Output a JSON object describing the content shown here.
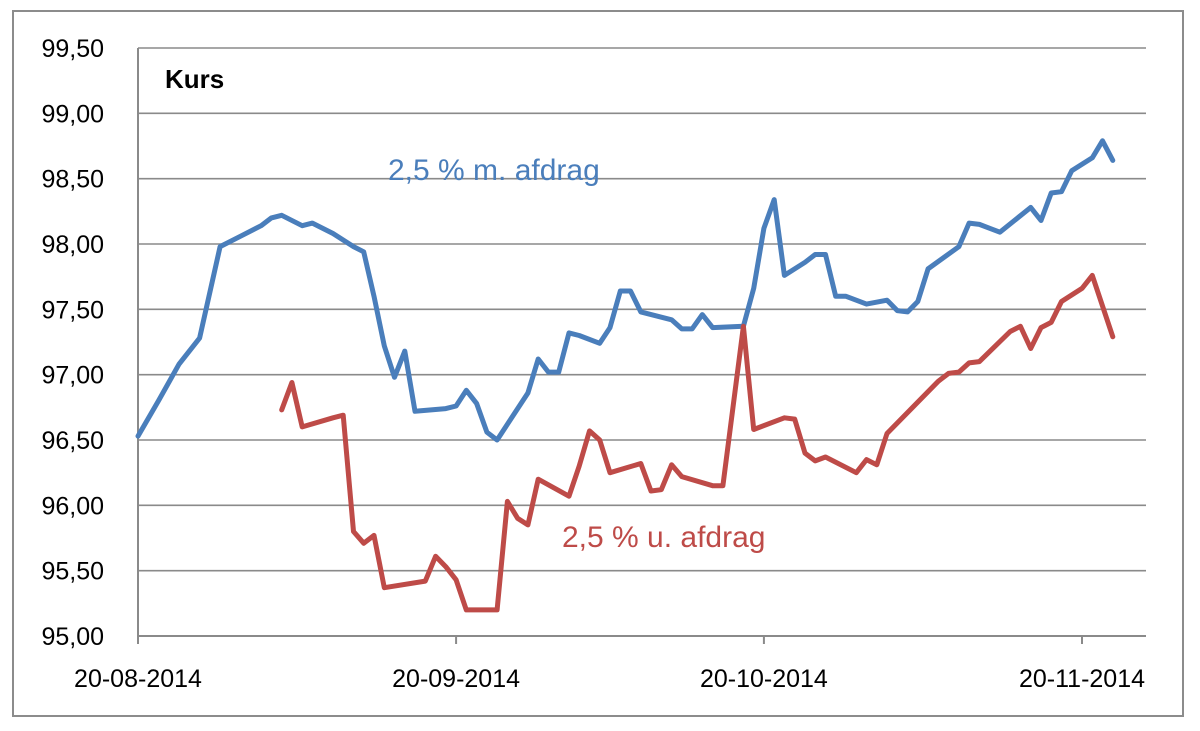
{
  "chart_data": {
    "type": "line",
    "title": "Kurs",
    "xlabel": "",
    "ylabel": "",
    "ylim": [
      95.0,
      99.5
    ],
    "y_ticks": [
      "95,00",
      "95,50",
      "96,00",
      "96,50",
      "97,00",
      "97,50",
      "98,00",
      "98,50",
      "99,00",
      "99,50"
    ],
    "x_range": [
      "2014-08-20",
      "2014-11-23"
    ],
    "x_ticks": [
      {
        "date": "2014-08-20",
        "label": "20-08-2014"
      },
      {
        "date": "2014-09-20",
        "label": "20-09-2014"
      },
      {
        "date": "2014-10-20",
        "label": "20-10-2014"
      },
      {
        "date": "2014-11-20",
        "label": "20-11-2014"
      }
    ],
    "grid": true,
    "series": [
      {
        "name": "2,5 % m. afdrag",
        "color": "#4a7ebb",
        "points": [
          [
            "2014-08-20",
            96.53
          ],
          [
            "2014-08-22",
            96.8
          ],
          [
            "2014-08-24",
            97.08
          ],
          [
            "2014-08-26",
            97.28
          ],
          [
            "2014-08-28",
            97.98
          ],
          [
            "2014-08-30",
            98.06
          ],
          [
            "2014-09-01",
            98.14
          ],
          [
            "2014-09-02",
            98.2
          ],
          [
            "2014-09-03",
            98.22
          ],
          [
            "2014-09-05",
            98.14
          ],
          [
            "2014-09-06",
            98.16
          ],
          [
            "2014-09-08",
            98.08
          ],
          [
            "2014-09-10",
            97.98
          ],
          [
            "2014-09-11",
            97.94
          ],
          [
            "2014-09-12",
            97.6
          ],
          [
            "2014-09-13",
            97.22
          ],
          [
            "2014-09-14",
            96.98
          ],
          [
            "2014-09-15",
            97.18
          ],
          [
            "2014-09-16",
            96.72
          ],
          [
            "2014-09-19",
            96.74
          ],
          [
            "2014-09-20",
            96.76
          ],
          [
            "2014-09-21",
            96.88
          ],
          [
            "2014-09-22",
            96.78
          ],
          [
            "2014-09-23",
            96.56
          ],
          [
            "2014-09-24",
            96.5
          ],
          [
            "2014-09-27",
            96.86
          ],
          [
            "2014-09-28",
            97.12
          ],
          [
            "2014-09-29",
            97.02
          ],
          [
            "2014-09-30",
            97.02
          ],
          [
            "2014-10-01",
            97.32
          ],
          [
            "2014-10-02",
            97.3
          ],
          [
            "2014-10-04",
            97.24
          ],
          [
            "2014-10-05",
            97.36
          ],
          [
            "2014-10-06",
            97.64
          ],
          [
            "2014-10-07",
            97.64
          ],
          [
            "2014-10-08",
            97.48
          ],
          [
            "2014-10-11",
            97.42
          ],
          [
            "2014-10-12",
            97.35
          ],
          [
            "2014-10-13",
            97.35
          ],
          [
            "2014-10-14",
            97.46
          ],
          [
            "2014-10-15",
            97.36
          ],
          [
            "2014-10-18",
            97.37
          ],
          [
            "2014-10-19",
            97.66
          ],
          [
            "2014-10-20",
            98.12
          ],
          [
            "2014-10-21",
            98.34
          ],
          [
            "2014-10-22",
            97.76
          ],
          [
            "2014-10-24",
            97.86
          ],
          [
            "2014-10-25",
            97.92
          ],
          [
            "2014-10-26",
            97.92
          ],
          [
            "2014-10-27",
            97.6
          ],
          [
            "2014-10-28",
            97.6
          ],
          [
            "2014-10-30",
            97.54
          ],
          [
            "2014-11-01",
            97.57
          ],
          [
            "2014-11-02",
            97.49
          ],
          [
            "2014-11-03",
            97.48
          ],
          [
            "2014-11-04",
            97.56
          ],
          [
            "2014-11-05",
            97.81
          ],
          [
            "2014-11-08",
            97.98
          ],
          [
            "2014-11-09",
            98.16
          ],
          [
            "2014-11-10",
            98.15
          ],
          [
            "2014-11-11",
            98.12
          ],
          [
            "2014-11-12",
            98.09
          ],
          [
            "2014-11-15",
            98.28
          ],
          [
            "2014-11-16",
            98.18
          ],
          [
            "2014-11-17",
            98.39
          ],
          [
            "2014-11-18",
            98.4
          ],
          [
            "2014-11-19",
            98.56
          ],
          [
            "2014-11-21",
            98.66
          ],
          [
            "2014-11-22",
            98.79
          ],
          [
            "2014-11-23",
            98.64
          ]
        ]
      },
      {
        "name": "2,5 % u. afdrag",
        "color": "#be4b48",
        "points": [
          [
            "2014-09-03",
            96.73
          ],
          [
            "2014-09-04",
            96.94
          ],
          [
            "2014-09-05",
            96.6
          ],
          [
            "2014-09-08",
            96.67
          ],
          [
            "2014-09-09",
            96.69
          ],
          [
            "2014-09-10",
            95.8
          ],
          [
            "2014-09-11",
            95.71
          ],
          [
            "2014-09-12",
            95.77
          ],
          [
            "2014-09-13",
            95.37
          ],
          [
            "2014-09-17",
            95.42
          ],
          [
            "2014-09-18",
            95.61
          ],
          [
            "2014-09-19",
            95.53
          ],
          [
            "2014-09-20",
            95.43
          ],
          [
            "2014-09-21",
            95.2
          ],
          [
            "2014-09-24",
            95.2
          ],
          [
            "2014-09-25",
            96.03
          ],
          [
            "2014-09-26",
            95.9
          ],
          [
            "2014-09-27",
            95.85
          ],
          [
            "2014-09-28",
            96.2
          ],
          [
            "2014-10-01",
            96.07
          ],
          [
            "2014-10-02",
            96.3
          ],
          [
            "2014-10-03",
            96.57
          ],
          [
            "2014-10-04",
            96.5
          ],
          [
            "2014-10-05",
            96.25
          ],
          [
            "2014-10-08",
            96.32
          ],
          [
            "2014-10-09",
            96.11
          ],
          [
            "2014-10-10",
            96.12
          ],
          [
            "2014-10-11",
            96.31
          ],
          [
            "2014-10-12",
            96.22
          ],
          [
            "2014-10-15",
            96.15
          ],
          [
            "2014-10-16",
            96.15
          ],
          [
            "2014-10-18",
            97.37
          ],
          [
            "2014-10-19",
            96.58
          ],
          [
            "2014-10-22",
            96.67
          ],
          [
            "2014-10-23",
            96.66
          ],
          [
            "2014-10-24",
            96.4
          ],
          [
            "2014-10-25",
            96.34
          ],
          [
            "2014-10-26",
            96.37
          ],
          [
            "2014-10-29",
            96.25
          ],
          [
            "2014-10-30",
            96.35
          ],
          [
            "2014-10-31",
            96.31
          ],
          [
            "2014-11-01",
            96.55
          ],
          [
            "2014-11-06",
            96.95
          ],
          [
            "2014-11-07",
            97.01
          ],
          [
            "2014-11-08",
            97.02
          ],
          [
            "2014-11-09",
            97.09
          ],
          [
            "2014-11-10",
            97.1
          ],
          [
            "2014-11-13",
            97.33
          ],
          [
            "2014-11-14",
            97.37
          ],
          [
            "2014-11-15",
            97.2
          ],
          [
            "2014-11-16",
            97.36
          ],
          [
            "2014-11-17",
            97.4
          ],
          [
            "2014-11-18",
            97.56
          ],
          [
            "2014-11-20",
            97.66
          ],
          [
            "2014-11-21",
            97.76
          ],
          [
            "2014-11-23",
            97.29
          ]
        ]
      }
    ]
  }
}
